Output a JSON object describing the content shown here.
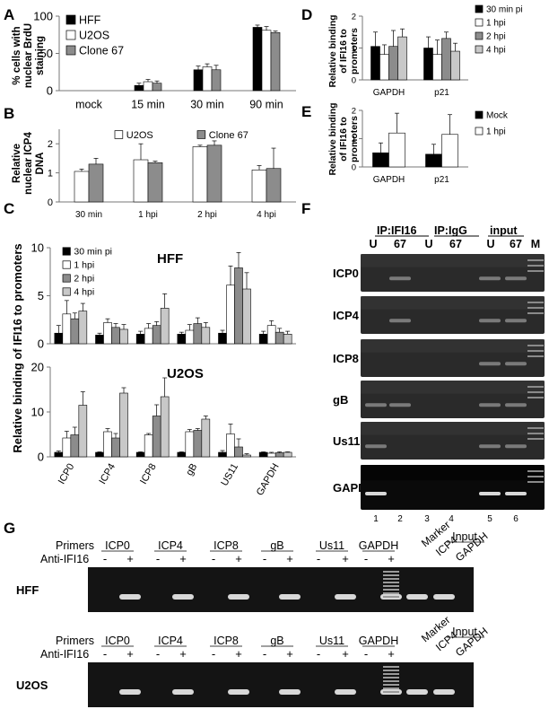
{
  "panels": {
    "A": {
      "letter": "A",
      "ylabel_lines": [
        "% cells with",
        "nuclear BrdU",
        "staining"
      ]
    },
    "B": {
      "letter": "B",
      "ylabel_lines": [
        "Relative",
        "nuclear ICP4",
        "DNA"
      ]
    },
    "C": {
      "letter": "C",
      "ylabel": "Relative binding of IFI16 to promoters",
      "top_title": "HFF",
      "bottom_title": "U2OS"
    },
    "D": {
      "letter": "D",
      "ylabel_lines": [
        "Relative binding",
        "of IFI16 to",
        "promoters"
      ]
    },
    "E": {
      "letter": "E",
      "ylabel_lines": [
        "Relative binding",
        "of IFI16 to",
        "promoters"
      ]
    },
    "F": {
      "letter": "F",
      "headers": [
        "IP:IFI16",
        "IP:IgG",
        "input"
      ],
      "sub_labels": [
        "U",
        "67",
        "U",
        "67",
        "U",
        "67",
        "M"
      ],
      "rows": [
        "ICP0",
        "ICP4",
        "ICP8",
        "gB",
        "Us11",
        "GAPDH"
      ],
      "lane_numbers": [
        "1",
        "2",
        "3",
        "4",
        "5",
        "6"
      ]
    },
    "G": {
      "letter": "G",
      "primers_label": "Primers",
      "anti_label": "Anti-IFI16",
      "primers": [
        "ICP0",
        "ICP4",
        "ICP8",
        "gB",
        "Us11",
        "GAPDH"
      ],
      "minus": "-",
      "plus": "+",
      "marker": "Marker",
      "input_label": "Input",
      "input_primers": [
        "ICP4",
        "GAPDH"
      ],
      "cells": [
        "HFF",
        "U2OS"
      ]
    }
  },
  "chart_data": [
    {
      "id": "A",
      "type": "bar",
      "categories": [
        "mock",
        "15 min",
        "30 min",
        "90 min"
      ],
      "series": [
        {
          "name": "HFF",
          "color": "#000000",
          "values": [
            0,
            7,
            28,
            85
          ],
          "err": [
            0,
            3,
            5,
            3
          ]
        },
        {
          "name": "U2OS",
          "color": "#ffffff",
          "values": [
            0,
            12,
            32,
            81
          ],
          "err": [
            0,
            3,
            4,
            5
          ]
        },
        {
          "name": "Clone 67",
          "color": "#8c8c8c",
          "values": [
            0,
            10,
            28,
            78
          ],
          "err": [
            0,
            3,
            6,
            2
          ]
        }
      ],
      "yticks": [
        0,
        50,
        100
      ],
      "ylim": [
        0,
        100
      ],
      "legend": "top-left"
    },
    {
      "id": "B",
      "type": "bar",
      "categories": [
        "30 min",
        "1 hpi",
        "2 hpi",
        "4 hpi"
      ],
      "series": [
        {
          "name": "U2OS",
          "color": "#ffffff",
          "values": [
            1.05,
            1.45,
            1.9,
            1.1
          ],
          "err": [
            0.08,
            0.55,
            0.05,
            0.15
          ]
        },
        {
          "name": "Clone 67",
          "color": "#8c8c8c",
          "values": [
            1.3,
            1.35,
            1.95,
            1.15
          ],
          "err": [
            0.2,
            0.05,
            0.15,
            0.7
          ]
        }
      ],
      "yticks": [
        0,
        1,
        2
      ],
      "ylim": [
        0,
        2.5
      ],
      "legend": "top"
    },
    {
      "id": "C-HFF",
      "type": "bar",
      "categories": [
        "ICP0",
        "ICP4",
        "ICP8",
        "gB",
        "US11",
        "GAPDH"
      ],
      "series": [
        {
          "name": "30 min pi",
          "color": "#000000",
          "values": [
            1.1,
            0.9,
            1.0,
            1.0,
            1.1,
            1.0
          ],
          "err": [
            0.8,
            0.2,
            0.3,
            0.2,
            0.3,
            0.3
          ]
        },
        {
          "name": "1 hpi",
          "color": "#ffffff",
          "values": [
            3.1,
            2.2,
            1.6,
            1.4,
            6.1,
            1.9
          ],
          "err": [
            1.4,
            0.4,
            0.5,
            0.6,
            2.0,
            0.5
          ]
        },
        {
          "name": "2 hpi",
          "color": "#8c8c8c",
          "values": [
            2.6,
            1.7,
            1.9,
            2.1,
            7.9,
            1.2
          ],
          "err": [
            0.6,
            0.4,
            0.4,
            0.6,
            1.6,
            0.4
          ]
        },
        {
          "name": "4 hpi",
          "color": "#c8c8c8",
          "values": [
            3.4,
            1.5,
            3.7,
            1.7,
            5.7,
            1.0
          ],
          "err": [
            0.8,
            0.5,
            1.5,
            0.5,
            1.7,
            0.3
          ]
        }
      ],
      "yticks": [
        0,
        5,
        10
      ],
      "ylim": [
        0,
        10
      ],
      "title": "HFF",
      "legend": "top-left"
    },
    {
      "id": "C-U2OS",
      "type": "bar",
      "categories": [
        "ICP0",
        "ICP4",
        "ICP8",
        "gB",
        "US11",
        "GAPDH"
      ],
      "series": [
        {
          "name": "30 min pi",
          "color": "#000000",
          "values": [
            1.0,
            1.0,
            1.0,
            1.0,
            1.0,
            1.0
          ],
          "err": [
            0.3,
            0.1,
            0.1,
            0.1,
            0.4,
            0.1
          ]
        },
        {
          "name": "1 hpi",
          "color": "#ffffff",
          "values": [
            4.2,
            5.6,
            4.9,
            5.6,
            5.1,
            0.8
          ],
          "err": [
            1.5,
            0.7,
            0.3,
            0.5,
            2.2,
            0.2
          ]
        },
        {
          "name": "2 hpi",
          "color": "#8c8c8c",
          "values": [
            4.9,
            4.2,
            9.1,
            5.9,
            2.2,
            0.9
          ],
          "err": [
            1.7,
            1.0,
            2.5,
            0.4,
            1.8,
            0.2
          ]
        },
        {
          "name": "4 hpi",
          "color": "#c8c8c8",
          "values": [
            11.5,
            14.2,
            13.4,
            8.4,
            0.4,
            1.0
          ],
          "err": [
            3.0,
            1.2,
            4.2,
            0.7,
            0.3,
            0.1
          ]
        }
      ],
      "yticks": [
        0,
        10,
        20
      ],
      "ylim": [
        0,
        20
      ],
      "title": "U2OS"
    },
    {
      "id": "D",
      "type": "bar",
      "categories": [
        "GAPDH",
        "p21"
      ],
      "series": [
        {
          "name": "30 min pi",
          "color": "#000000",
          "values": [
            1.05,
            1.0
          ],
          "err": [
            0.45,
            0.35
          ]
        },
        {
          "name": "1 hpi",
          "color": "#ffffff",
          "values": [
            0.8,
            0.8
          ],
          "err": [
            0.3,
            0.45
          ]
        },
        {
          "name": "2 hpi",
          "color": "#8c8c8c",
          "values": [
            1.05,
            1.3
          ],
          "err": [
            0.5,
            0.2
          ]
        },
        {
          "name": "4 hpi",
          "color": "#c8c8c8",
          "values": [
            1.35,
            0.9
          ],
          "err": [
            0.25,
            0.25
          ]
        }
      ],
      "yticks": [
        0,
        1,
        2
      ],
      "ylim": [
        0,
        2
      ],
      "legend": "right"
    },
    {
      "id": "E",
      "type": "bar",
      "categories": [
        "GAPDH",
        "p21"
      ],
      "series": [
        {
          "name": "Mock",
          "color": "#000000",
          "values": [
            0.5,
            0.45
          ],
          "err": [
            0.35,
            0.35
          ]
        },
        {
          "name": "1 hpi",
          "color": "#ffffff",
          "values": [
            1.2,
            1.15
          ],
          "err": [
            0.7,
            0.7
          ]
        }
      ],
      "yticks": [
        0,
        1,
        2
      ],
      "ylim": [
        0,
        2
      ],
      "legend": "right"
    }
  ]
}
